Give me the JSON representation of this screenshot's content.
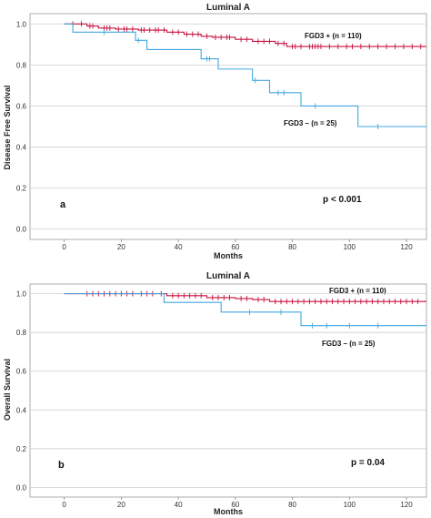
{
  "chart_data": [
    {
      "type": "line",
      "subtype": "kaplan-meier",
      "title": "Luminal A",
      "xlabel": "Months",
      "ylabel": "Disease Free Survival",
      "xlim": [
        -12,
        127
      ],
      "ylim": [
        -0.05,
        1.05
      ],
      "xticks": [
        0,
        20,
        40,
        60,
        80,
        100,
        120
      ],
      "yticks": [
        0.0,
        0.2,
        0.4,
        0.6,
        0.8,
        1.0
      ],
      "grid": "horizontal",
      "panel_label": "a",
      "p_label": "p < 0.001",
      "colors": {
        "pos": "#c8103e",
        "neg": "#41a7e1"
      },
      "series": [
        {
          "name": "FGD3 + (n = 110)",
          "color": "#c8103e",
          "steps": [
            [
              0,
              1.0
            ],
            [
              8,
              0.99
            ],
            [
              12,
              0.98
            ],
            [
              18,
              0.975
            ],
            [
              26,
              0.97
            ],
            [
              36,
              0.96
            ],
            [
              42,
              0.95
            ],
            [
              48,
              0.94
            ],
            [
              52,
              0.935
            ],
            [
              60,
              0.925
            ],
            [
              66,
              0.915
            ],
            [
              74,
              0.905
            ],
            [
              78,
              0.89
            ],
            [
              127,
              0.89
            ]
          ],
          "censor": [
            3,
            6,
            9,
            10,
            14,
            15,
            16,
            19,
            21,
            22,
            24,
            27,
            28,
            30,
            32,
            33,
            35,
            38,
            40,
            43,
            45,
            47,
            50,
            53,
            55,
            57,
            58,
            62,
            64,
            68,
            70,
            72,
            75,
            77,
            80,
            81,
            83,
            86,
            87,
            88,
            89,
            90,
            93,
            96,
            99,
            101,
            104,
            107,
            110,
            113,
            116,
            119,
            122,
            125
          ]
        },
        {
          "name": "FGD3 – (n = 25)",
          "color": "#41a7e1",
          "steps": [
            [
              0,
              1.0
            ],
            [
              3,
              0.96
            ],
            [
              25,
              0.92
            ],
            [
              29,
              0.875
            ],
            [
              48,
              0.83
            ],
            [
              54,
              0.78
            ],
            [
              66,
              0.725
            ],
            [
              72,
              0.665
            ],
            [
              83,
              0.6
            ],
            [
              103,
              0.5
            ],
            [
              127,
              0.5
            ]
          ],
          "censor": [
            14,
            26,
            50,
            51,
            67,
            75,
            77,
            88,
            110
          ]
        }
      ]
    },
    {
      "type": "line",
      "subtype": "kaplan-meier",
      "title": "Luminal A",
      "xlabel": "Months",
      "ylabel": "Overall Survival",
      "xlim": [
        -12,
        127
      ],
      "ylim": [
        -0.05,
        1.05
      ],
      "xticks": [
        0,
        20,
        40,
        60,
        80,
        100,
        120
      ],
      "yticks": [
        0.0,
        0.2,
        0.4,
        0.6,
        0.8,
        1.0
      ],
      "grid": "horizontal",
      "panel_label": "b",
      "p_label": "p = 0.04",
      "colors": {
        "pos": "#c8103e",
        "neg": "#41a7e1"
      },
      "series": [
        {
          "name": "FGD3 + (n = 110)",
          "color": "#c8103e",
          "steps": [
            [
              0,
              1.0
            ],
            [
              36,
              0.99
            ],
            [
              50,
              0.98
            ],
            [
              60,
              0.975
            ],
            [
              66,
              0.97
            ],
            [
              72,
              0.96
            ],
            [
              127,
              0.96
            ]
          ],
          "censor": [
            8,
            10,
            12,
            14,
            16,
            18,
            20,
            22,
            24,
            27,
            29,
            31,
            34,
            38,
            40,
            42,
            44,
            46,
            48,
            52,
            54,
            56,
            58,
            62,
            64,
            68,
            70,
            74,
            76,
            78,
            80,
            82,
            84,
            86,
            88,
            90,
            92,
            94,
            96,
            98,
            100,
            102,
            104,
            106,
            108,
            110,
            112,
            114,
            116,
            118,
            120,
            122,
            124
          ]
        },
        {
          "name": "FGD3 – (n = 25)",
          "color": "#41a7e1",
          "steps": [
            [
              0,
              1.0
            ],
            [
              35,
              0.955
            ],
            [
              55,
              0.905
            ],
            [
              83,
              0.835
            ],
            [
              127,
              0.835
            ]
          ],
          "censor": [
            65,
            76,
            87,
            92,
            100,
            110
          ]
        }
      ]
    }
  ]
}
